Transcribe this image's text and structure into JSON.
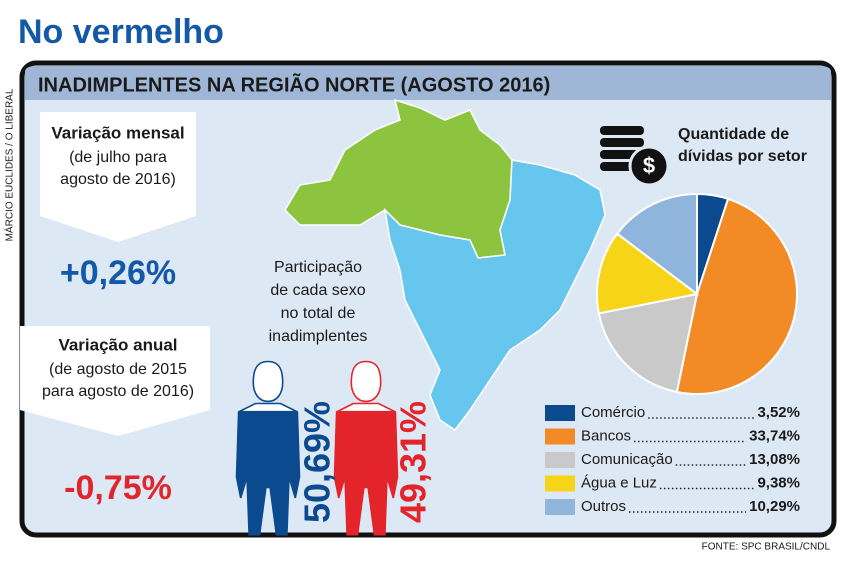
{
  "header": {
    "title": "No vermelho",
    "credit": "MÁRCIO EUCLIDES / O LIBERAL",
    "source": "FONTE: SPC BRASIL/CNDL"
  },
  "panel": {
    "title": "INADIMPLENTES NA REGIÃO NORTE (AGOSTO 2016)"
  },
  "monthly": {
    "title": "Variação mensal",
    "subtitle": [
      "(de julho para",
      "agosto de 2016)"
    ],
    "value": "+0,26%"
  },
  "annual": {
    "title": "Variação anual",
    "subtitle": [
      "(de agosto de 2015",
      "para agosto de 2016)"
    ],
    "value": "-0,75%"
  },
  "gender": {
    "caption": [
      "Participação",
      "de cada sexo",
      "no total de",
      "inadimplentes"
    ],
    "male": "50,69%",
    "female": "49,31%"
  },
  "chart_data": {
    "type": "pie",
    "title": [
      "Quantidade de",
      "dívidas por setor"
    ],
    "categories": [
      "Comércio",
      "Bancos",
      "Comunicação",
      "Água e Luz",
      "Outros"
    ],
    "values": [
      3.52,
      33.74,
      13.08,
      9.38,
      10.29
    ],
    "value_labels": [
      "3,52%",
      "33,74%",
      "13,08%",
      "9,38%",
      "10,29%"
    ],
    "colors": [
      "#0b4a8e",
      "#f28a25",
      "#c9c9c9",
      "#f7d417",
      "#90b5dd"
    ]
  }
}
